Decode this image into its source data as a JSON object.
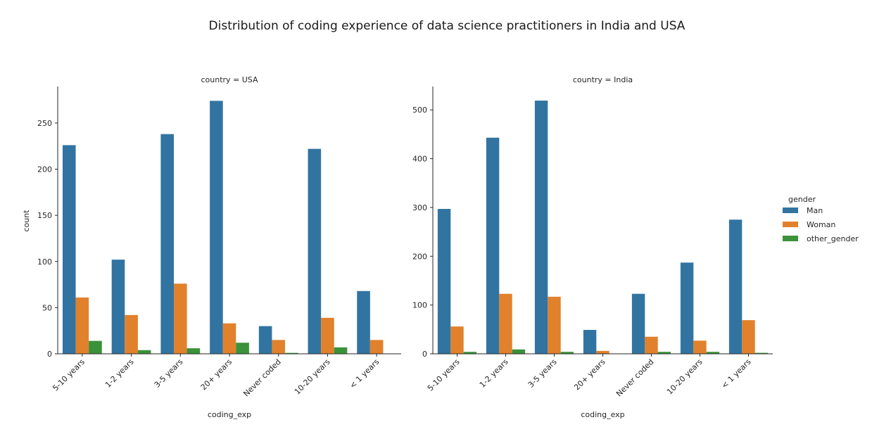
{
  "suptitle": "Distribution of coding experience of data science practitioners in India and USA",
  "legend": {
    "title": "gender",
    "entries": [
      "Man",
      "Woman",
      "other_gender"
    ],
    "placement": "right"
  },
  "colors": {
    "Man": "#3274a1",
    "Woman": "#e1812c",
    "other_gender": "#3a923a"
  },
  "chart_data": [
    {
      "type": "bar",
      "title": "country = USA",
      "xlabel": "coding_exp",
      "ylabel": "count",
      "categories": [
        "5-10 years",
        "1-2 years",
        "3-5 years",
        "20+ years",
        "Never coded",
        "10-20 years",
        "< 1 years"
      ],
      "ylim": [
        0,
        288
      ],
      "yticks": [
        0,
        50,
        100,
        150,
        200,
        250
      ],
      "grid": false,
      "series": [
        {
          "name": "Man",
          "values": [
            226,
            102,
            238,
            274,
            30,
            222,
            68
          ]
        },
        {
          "name": "Woman",
          "values": [
            61,
            42,
            76,
            33,
            15,
            39,
            15
          ]
        },
        {
          "name": "other_gender",
          "values": [
            14,
            4,
            6,
            12,
            1,
            7,
            null
          ]
        }
      ]
    },
    {
      "type": "bar",
      "title": "country = India",
      "xlabel": "coding_exp",
      "ylabel": "",
      "categories": [
        "5-10 years",
        "1-2 years",
        "3-5 years",
        "20+ years",
        "Never coded",
        "10-20 years",
        "< 1 years"
      ],
      "ylim": [
        0,
        545
      ],
      "yticks": [
        0,
        100,
        200,
        300,
        400,
        500
      ],
      "grid": false,
      "series": [
        {
          "name": "Man",
          "values": [
            297,
            443,
            519,
            49,
            123,
            187,
            275
          ]
        },
        {
          "name": "Woman",
          "values": [
            56,
            123,
            117,
            6,
            35,
            27,
            69
          ]
        },
        {
          "name": "other_gender",
          "values": [
            4,
            9,
            4,
            null,
            4,
            4,
            2
          ]
        }
      ]
    }
  ]
}
